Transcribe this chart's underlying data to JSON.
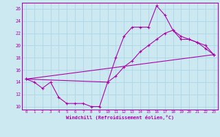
{
  "title": "",
  "xlabel": "Windchill (Refroidissement éolien,°C)",
  "background_color": "#cce8f0",
  "grid_color": "#b0d8e8",
  "line_color": "#aa00aa",
  "xlim": [
    -0.5,
    23.5
  ],
  "ylim": [
    9.5,
    27.0
  ],
  "xticks": [
    0,
    1,
    2,
    3,
    4,
    5,
    6,
    7,
    8,
    9,
    10,
    11,
    12,
    13,
    14,
    15,
    16,
    17,
    18,
    19,
    20,
    21,
    22,
    23
  ],
  "yticks": [
    10,
    12,
    14,
    16,
    18,
    20,
    22,
    24,
    26
  ],
  "line1_x": [
    0,
    1,
    2,
    3,
    4,
    5,
    6,
    7,
    8,
    9,
    10,
    11,
    12,
    13,
    14,
    15,
    16,
    17,
    18,
    19,
    20,
    21,
    22,
    23
  ],
  "line1_y": [
    14.5,
    14.0,
    13.0,
    14.0,
    11.5,
    10.5,
    10.5,
    10.5,
    10.0,
    10.0,
    14.0,
    18.0,
    21.5,
    23.0,
    23.0,
    23.0,
    26.5,
    25.0,
    22.5,
    21.5,
    21.0,
    20.5,
    19.5,
    18.5
  ],
  "line2_x": [
    0,
    10,
    11,
    12,
    13,
    14,
    15,
    16,
    17,
    18,
    19,
    20,
    21,
    22,
    23
  ],
  "line2_y": [
    14.5,
    14.0,
    15.0,
    16.5,
    17.5,
    19.0,
    20.0,
    21.0,
    22.0,
    22.5,
    21.0,
    21.0,
    20.5,
    20.0,
    18.5
  ],
  "line3_x": [
    0,
    23
  ],
  "line3_y": [
    14.5,
    18.5
  ]
}
